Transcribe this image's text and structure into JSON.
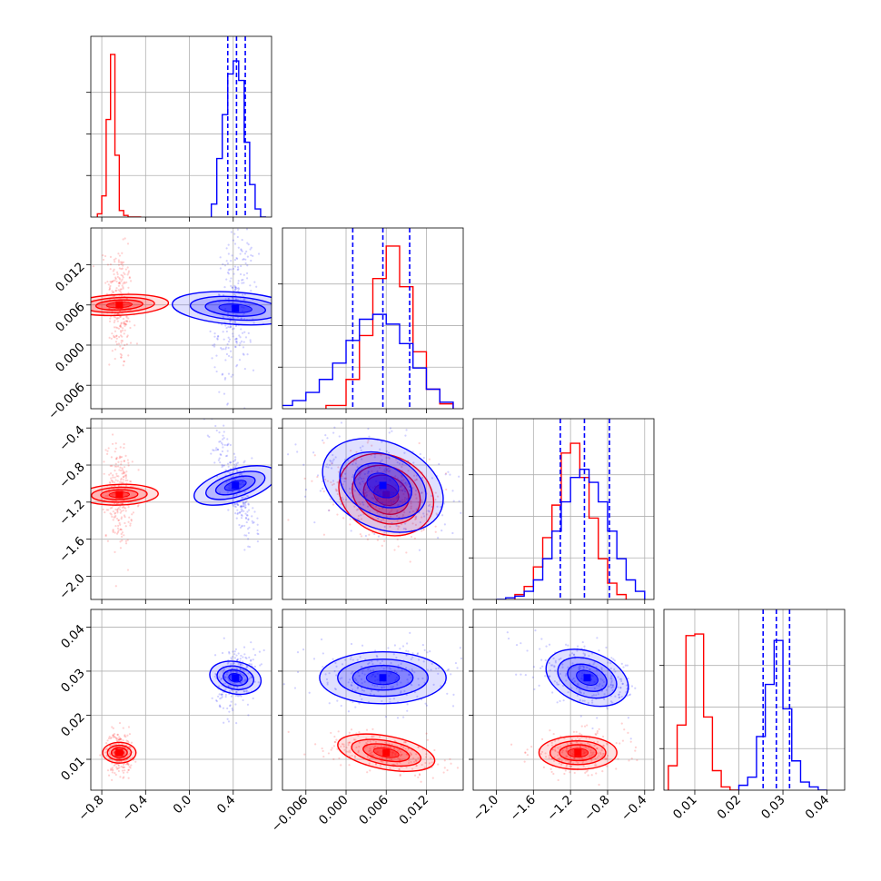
{
  "chart_data": {
    "type": "corner",
    "colors": {
      "series_a": "#ff0000",
      "series_b": "#0000ff"
    },
    "grid": true,
    "series": [
      {
        "color": "#ff0000",
        "means": [
          -0.64,
          0.006,
          -1.12,
          0.0115
        ],
        "stds": [
          0.045,
          0.0035,
          0.2,
          0.0018
        ],
        "corr": {
          "0-2": -0.1,
          "1-2": -0.3,
          "1-3": -0.5,
          "0-1": -0.2
        }
      },
      {
        "color": "#0000ff",
        "means": [
          0.42,
          0.0055,
          -1.02,
          0.0285
        ],
        "stds": [
          0.07,
          0.0045,
          0.22,
          0.0028
        ],
        "corr": {
          "0-1": 0.25,
          "0-2": -0.75,
          "1-2": -0.45,
          "2-3": -0.45,
          "0-3": 0.2
        }
      }
    ],
    "quantile_lines": [
      [
        0.35,
        0.43,
        0.51
      ],
      [
        0.001,
        0.0055,
        0.0095
      ],
      [
        -1.31,
        -1.05,
        -0.78
      ],
      [
        0.0255,
        0.0285,
        0.0315
      ]
    ],
    "hist_red": [
      {
        "edges": [
          -0.84,
          -0.8,
          -0.76,
          -0.72,
          -0.68,
          -0.64,
          -0.6,
          -0.56,
          -0.52,
          -0.48,
          -0.44
        ],
        "counts": [
          0.02,
          0.13,
          0.6,
          1.0,
          0.38,
          0.04,
          0.01,
          0.0,
          0.0,
          0.0
        ]
      },
      {
        "edges": [
          -0.003,
          0.0,
          0.002,
          0.004,
          0.006,
          0.008,
          0.01,
          0.012,
          0.014,
          0.016
        ],
        "counts": [
          0.02,
          0.18,
          0.45,
          0.8,
          1.0,
          0.75,
          0.35,
          0.12,
          0.03
        ]
      },
      {
        "edges": [
          -1.8,
          -1.7,
          -1.6,
          -1.5,
          -1.4,
          -1.3,
          -1.2,
          -1.1,
          -1.0,
          -0.9,
          -0.8,
          -0.7,
          -0.6
        ],
        "counts": [
          0.03,
          0.08,
          0.2,
          0.38,
          0.58,
          0.9,
          0.96,
          0.75,
          0.5,
          0.25,
          0.1,
          0.03
        ]
      },
      {
        "edges": [
          0.004,
          0.006,
          0.008,
          0.01,
          0.012,
          0.014,
          0.016,
          0.018,
          0.02
        ],
        "counts": [
          0.15,
          0.4,
          0.95,
          0.96,
          0.45,
          0.12,
          0.02,
          0.0
        ]
      }
    ],
    "hist_blue": [
      {
        "edges": [
          0.2,
          0.25,
          0.3,
          0.35,
          0.4,
          0.45,
          0.5,
          0.55,
          0.6,
          0.65,
          0.7
        ],
        "counts": [
          0.08,
          0.36,
          0.63,
          0.88,
          0.96,
          0.84,
          0.46,
          0.2,
          0.05,
          0.0
        ]
      },
      {
        "edges": [
          -0.01,
          -0.008,
          -0.006,
          -0.004,
          -0.002,
          0.0,
          0.002,
          0.004,
          0.006,
          0.008,
          0.01,
          0.012,
          0.014,
          0.016
        ],
        "counts": [
          0.02,
          0.05,
          0.1,
          0.18,
          0.28,
          0.42,
          0.55,
          0.58,
          0.52,
          0.4,
          0.25,
          0.12,
          0.04
        ]
      },
      {
        "edges": [
          -2.0,
          -1.9,
          -1.8,
          -1.7,
          -1.6,
          -1.5,
          -1.4,
          -1.3,
          -1.2,
          -1.1,
          -1.0,
          -0.9,
          -0.8,
          -0.7,
          -0.6,
          -0.5,
          -0.4
        ],
        "counts": [
          0.0,
          0.01,
          0.02,
          0.05,
          0.12,
          0.25,
          0.42,
          0.6,
          0.75,
          0.8,
          0.72,
          0.6,
          0.42,
          0.25,
          0.12,
          0.05
        ]
      },
      {
        "edges": [
          0.02,
          0.022,
          0.024,
          0.026,
          0.028,
          0.03,
          0.032,
          0.034,
          0.036,
          0.038,
          0.04
        ],
        "counts": [
          0.03,
          0.08,
          0.33,
          0.65,
          0.92,
          0.5,
          0.18,
          0.05,
          0.02,
          0.0
        ]
      }
    ],
    "params": [
      {
        "range": [
          -0.9,
          0.75
        ],
        "ticks": [
          -0.8,
          -0.4,
          0.0,
          0.4
        ],
        "tick_labels": [
          "−0.8",
          "−0.4",
          "0.0",
          "0.4"
        ]
      },
      {
        "range": [
          -0.0095,
          0.0175
        ],
        "ticks": [
          -0.006,
          0.0,
          0.006,
          0.012
        ],
        "tick_labels": [
          "−0.006",
          "0.000",
          "0.006",
          "0.012"
        ]
      },
      {
        "range": [
          -2.25,
          -0.3
        ],
        "ticks": [
          -2.0,
          -1.6,
          -1.2,
          -0.8,
          -0.4
        ],
        "tick_labels": [
          "−2.0",
          "−1.6",
          "−1.2",
          "−0.8",
          "−0.4"
        ]
      },
      {
        "range": [
          0.003,
          0.044
        ],
        "ticks": [
          0.01,
          0.02,
          0.03,
          0.04
        ],
        "tick_labels": [
          "0.01",
          "0.02",
          "0.03",
          "0.04"
        ]
      }
    ]
  }
}
